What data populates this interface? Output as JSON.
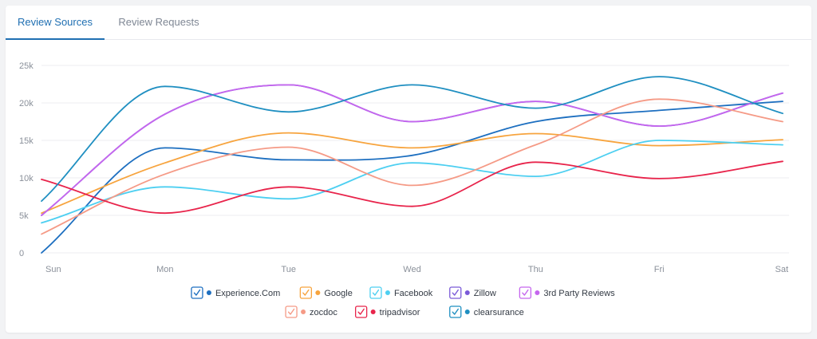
{
  "tabs": [
    {
      "label": "Review Sources",
      "active": true
    },
    {
      "label": "Review Requests",
      "active": false
    }
  ],
  "chart_data": {
    "type": "line",
    "x": [
      "Sun",
      "Mon",
      "Tue",
      "Wed",
      "Thu",
      "Fri",
      "Sat"
    ],
    "y_ticks": [
      "0",
      "5k",
      "10k",
      "15k",
      "20k",
      "25k"
    ],
    "ylim": [
      0,
      25000
    ],
    "grid": true,
    "legend_position": "bottom",
    "series": [
      {
        "name": "Experience.Com",
        "color": "#1d6fc0",
        "checked": true,
        "values": [
          0,
          14000,
          12400,
          13000,
          17500,
          19000,
          20200
        ]
      },
      {
        "name": "Google",
        "color": "#f7a43e",
        "checked": true,
        "values": [
          5300,
          12000,
          16000,
          14000,
          15900,
          14300,
          15100
        ]
      },
      {
        "name": "Facebook",
        "color": "#4dcff1",
        "checked": true,
        "values": [
          4000,
          8800,
          7200,
          12000,
          10200,
          15000,
          14400
        ]
      },
      {
        "name": "Zillow",
        "color": "#7a5ad8",
        "checked": true,
        "values": [
          5000,
          18500,
          22400,
          17500,
          20200,
          16900,
          21300
        ]
      },
      {
        "name": "3rd Party Reviews",
        "color": "#c566ee",
        "checked": true,
        "values": [
          5000,
          18500,
          22400,
          17500,
          20200,
          16900,
          21300
        ]
      },
      {
        "name": "zocdoc",
        "color": "#f59a86",
        "checked": true,
        "values": [
          2500,
          10500,
          14100,
          9000,
          14400,
          20500,
          17500
        ]
      },
      {
        "name": "tripadvisor",
        "color": "#e8244b",
        "checked": true,
        "values": [
          9800,
          5300,
          8800,
          6200,
          12100,
          9900,
          12200
        ]
      },
      {
        "name": "clearsurance",
        "color": "#1f8fc1",
        "checked": true,
        "values": [
          6900,
          22200,
          18800,
          22400,
          19300,
          23500,
          18600
        ]
      }
    ]
  }
}
